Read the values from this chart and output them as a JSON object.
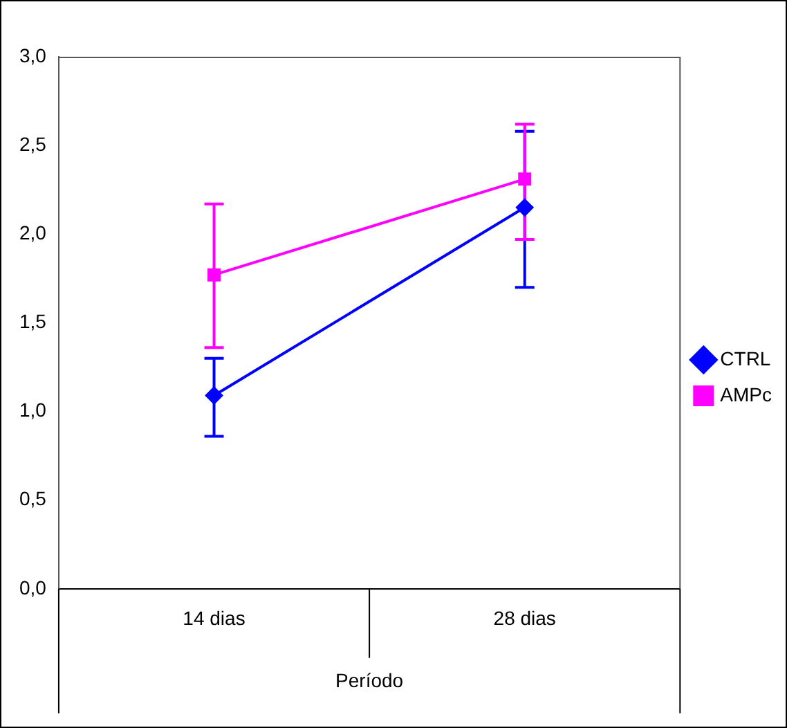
{
  "chart_data": {
    "type": "line",
    "xlabel": "Período",
    "categories": [
      "14 dias",
      "28 dias"
    ],
    "series": [
      {
        "name": "CTRL",
        "color": "#0000ff",
        "marker": "diamond",
        "values": [
          1.09,
          2.15
        ],
        "errors": [
          [
            0.86,
            1.3
          ],
          [
            1.7,
            2.58
          ]
        ]
      },
      {
        "name": "AMPc",
        "color": "#ff00ff",
        "marker": "square",
        "values": [
          1.77,
          2.31
        ],
        "errors": [
          [
            1.36,
            2.17
          ],
          [
            1.97,
            2.62
          ]
        ]
      }
    ],
    "ylim": [
      0,
      3
    ],
    "yticks": [
      {
        "value": 0,
        "label": "0,0"
      },
      {
        "value": 0.5,
        "label": "0,5"
      },
      {
        "value": 1,
        "label": "1,0"
      },
      {
        "value": 1.5,
        "label": "1,5"
      },
      {
        "value": 2,
        "label": "2,0"
      },
      {
        "value": 2.5,
        "label": "2,5"
      },
      {
        "value": 3,
        "label": "3,0"
      }
    ],
    "grid": false,
    "legend": "right",
    "line_style": "solid"
  }
}
